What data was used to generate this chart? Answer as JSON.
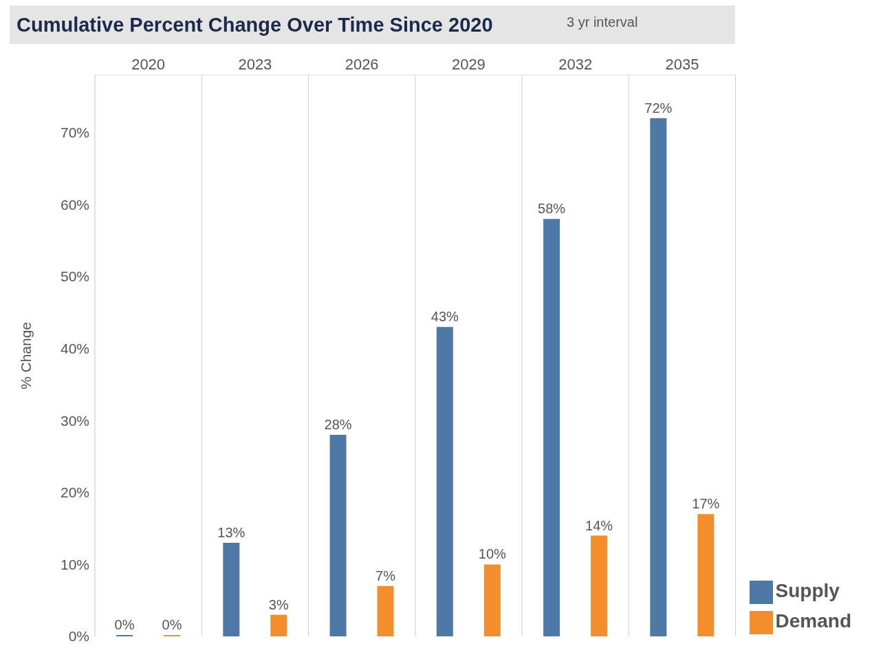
{
  "chart_data": {
    "type": "bar",
    "title": "Cumulative Percent Change Over Time Since 2020",
    "subtitle": "3 yr interval",
    "ylabel": "% Change",
    "categories": [
      "2020",
      "2023",
      "2026",
      "2029",
      "2032",
      "2035"
    ],
    "series": [
      {
        "name": "Supply",
        "color": "#4e79a7",
        "values": [
          0,
          13,
          28,
          43,
          58,
          72
        ],
        "value_labels": [
          "0%",
          "13%",
          "28%",
          "43%",
          "58%",
          "72%"
        ]
      },
      {
        "name": "Demand",
        "color": "#f28e2b",
        "values": [
          0,
          3,
          7,
          10,
          14,
          17
        ],
        "value_labels": [
          "0%",
          "3%",
          "7%",
          "10%",
          "14%",
          "17%"
        ]
      }
    ],
    "ylim": [
      0,
      78
    ],
    "yticks": [
      {
        "value": 0,
        "label": "0%"
      },
      {
        "value": 10,
        "label": "10%"
      },
      {
        "value": 20,
        "label": "20%"
      },
      {
        "value": 30,
        "label": "30%"
      },
      {
        "value": 40,
        "label": "40%"
      },
      {
        "value": 50,
        "label": "50%"
      },
      {
        "value": 60,
        "label": "60%"
      },
      {
        "value": 70,
        "label": "70%"
      }
    ],
    "grid": "x",
    "legend": "bottom right"
  }
}
